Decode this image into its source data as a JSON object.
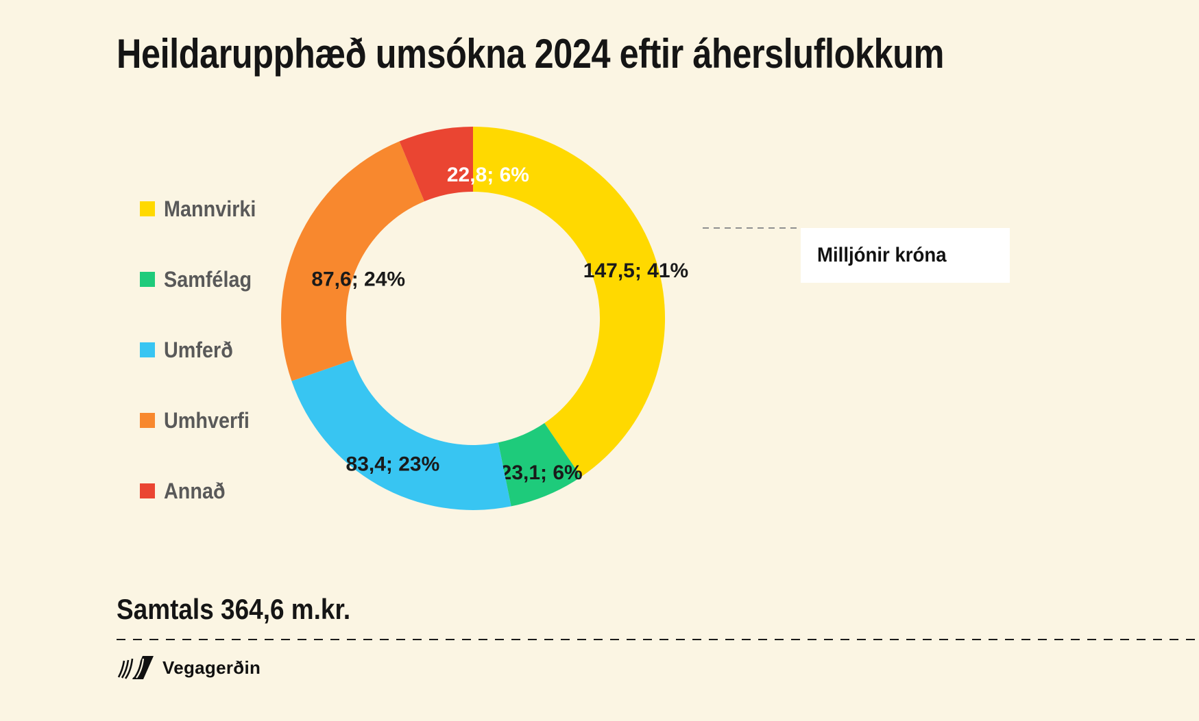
{
  "page": {
    "background": "#FBF5E3"
  },
  "title": "Heildarupphæð umsókna 2024 eftir áhersluflokkum",
  "chart_data": {
    "type": "pie",
    "subtype": "donut",
    "title": "Heildarupphæð umsókna 2024 eftir áhersluflokkum",
    "unit": "Milljónir króna",
    "legend_position": "left",
    "direction": "clockwise",
    "start_angle_deg": 0,
    "categories": [
      "Mannvirki",
      "Samfélag",
      "Umferð",
      "Umhverfi",
      "Annað"
    ],
    "values": [
      147.5,
      23.1,
      83.4,
      87.6,
      22.8
    ],
    "percent_labels": [
      "41%",
      "6%",
      "23%",
      "24%",
      "6%"
    ],
    "slice_labels": [
      "147,5; 41%",
      "23,1; 6%",
      "83,4; 23%",
      "87,6; 24%",
      "22,8; 6%"
    ],
    "colors": [
      "#FFD900",
      "#1ECB7B",
      "#38C5F2",
      "#F8882E",
      "#EA4532"
    ],
    "slice_label_colors": [
      "#1A1A1A",
      "#1A1A1A",
      "#1A1A1A",
      "#1A1A1A",
      "#FFFFFF"
    ],
    "total": 364.6,
    "total_label": "Samtals 364,6 m.kr."
  },
  "callout": {
    "label": "Milljónir króna"
  },
  "summary": {
    "total_text": "Samtals 364,6 m.kr."
  },
  "footer": {
    "brand": "Vegagerðin"
  }
}
